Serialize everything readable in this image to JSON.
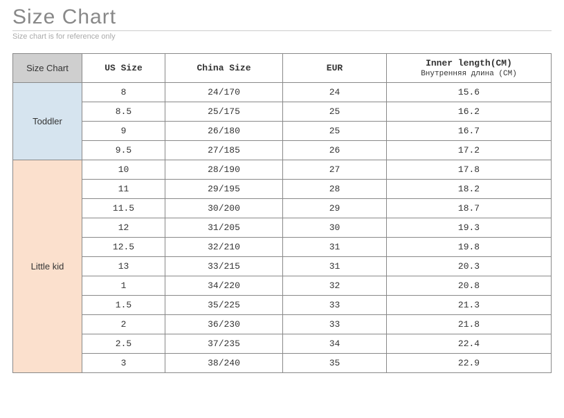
{
  "header": {
    "title": "Size Chart",
    "subtitle": "Size chart is for reference only"
  },
  "table": {
    "corner_label": "Size Chart",
    "columns": [
      {
        "label": "US Size"
      },
      {
        "label": "China Size"
      },
      {
        "label": "EUR"
      },
      {
        "label": "Inner length(CM)",
        "sublabel": "Внутренняя длина (CM)"
      }
    ],
    "groups": [
      {
        "name": "Toddler",
        "class": "toddler",
        "rows": [
          [
            "8",
            "24/170",
            "24",
            "15.6"
          ],
          [
            "8.5",
            "25/175",
            "25",
            "16.2"
          ],
          [
            "9",
            "26/180",
            "25",
            "16.7"
          ],
          [
            "9.5",
            "27/185",
            "26",
            "17.2"
          ]
        ]
      },
      {
        "name": "Little kid",
        "class": "littlekid",
        "rows": [
          [
            "10",
            "28/190",
            "27",
            "17.8"
          ],
          [
            "11",
            "29/195",
            "28",
            "18.2"
          ],
          [
            "11.5",
            "30/200",
            "29",
            "18.7"
          ],
          [
            "12",
            "31/205",
            "30",
            "19.3"
          ],
          [
            "12.5",
            "32/210",
            "31",
            "19.8"
          ],
          [
            "13",
            "33/215",
            "31",
            "20.3"
          ],
          [
            "1",
            "34/220",
            "32",
            "20.8"
          ],
          [
            "1.5",
            "35/225",
            "33",
            "21.3"
          ],
          [
            "2",
            "36/230",
            "33",
            "21.8"
          ],
          [
            "2.5",
            "37/235",
            "34",
            "22.4"
          ],
          [
            "3",
            "38/240",
            "35",
            "22.9"
          ]
        ]
      }
    ]
  },
  "colors": {
    "title_color": "#888888",
    "subtitle_color": "#aaaaaa",
    "border_color": "#888888",
    "header_corner_bg": "#cfcfcf",
    "toddler_bg": "#d6e4ef",
    "littlekid_bg": "#fbe0cd",
    "cell_bg": "#ffffff"
  }
}
